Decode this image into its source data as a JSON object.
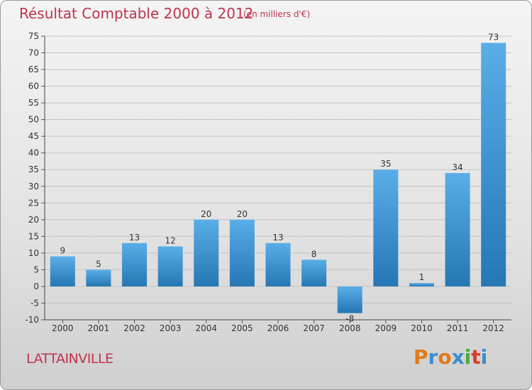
{
  "title": "Résultat Comptable 2000 à 2012",
  "subtitle": "(en milliers d'€)",
  "place": "LATTAINVILLE",
  "logo": {
    "text": "Proxiti",
    "colors": [
      "#e07b1a",
      "#3a8fd0",
      "#e07b1a",
      "#3a8fd0",
      "#4caa3a",
      "#e03a2a",
      "#3a8fd0"
    ]
  },
  "colors": {
    "title": "#c0334e",
    "bar_light": "#5aaee8",
    "bar_dark": "#2577b3"
  },
  "chart_data": {
    "type": "bar",
    "categories": [
      "2000",
      "2001",
      "2002",
      "2003",
      "2004",
      "2005",
      "2006",
      "2007",
      "2008",
      "2009",
      "2010",
      "2011",
      "2012"
    ],
    "values": [
      9,
      5,
      13,
      12,
      20,
      20,
      13,
      8,
      -8,
      35,
      1,
      34,
      73
    ],
    "data_labels": [
      "9",
      "5",
      "13",
      "12",
      "20",
      "20",
      "13",
      "8",
      "-8",
      "35",
      "1",
      "34",
      "73"
    ],
    "ylim": [
      -10,
      75
    ],
    "yticks": [
      -10,
      -5,
      0,
      5,
      10,
      15,
      20,
      25,
      30,
      35,
      40,
      45,
      50,
      55,
      60,
      65,
      70,
      75
    ],
    "ytick_labels": [
      "-10",
      "-5",
      "0",
      "5",
      "10",
      "15",
      "20",
      "25",
      "30",
      "35",
      "40",
      "45",
      "50",
      "55",
      "60",
      "65",
      "70",
      "75"
    ],
    "grid": true
  }
}
